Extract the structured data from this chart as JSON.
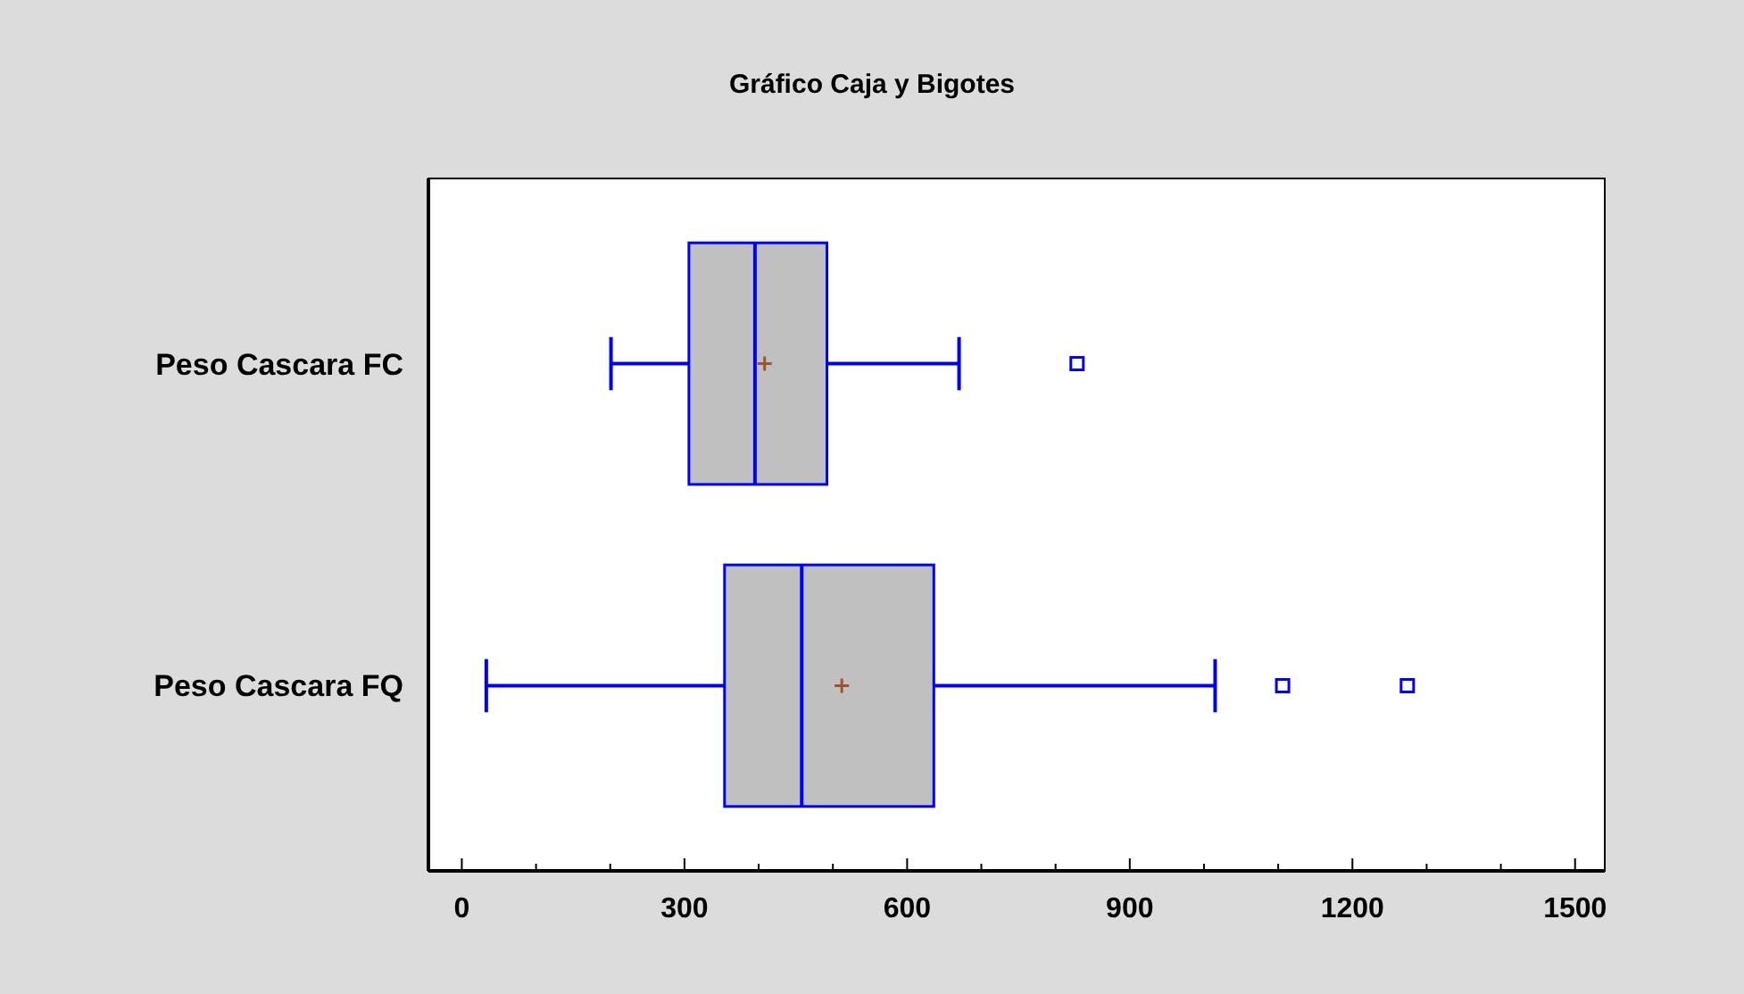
{
  "chart_data": {
    "type": "box",
    "title": "Gráfico Caja y Bigotes",
    "orientation": "horizontal",
    "categories": [
      "Peso Cascara FC",
      "Peso Cascara FQ"
    ],
    "boxes": [
      {
        "low": 201,
        "q1": 306,
        "median": 395,
        "q3": 492,
        "high": 670,
        "mean": 408,
        "outliers": [
          829
        ]
      },
      {
        "low": 33,
        "q1": 354,
        "median": 458,
        "q3": 636,
        "high": 1015,
        "mean": 512,
        "outliers": [
          1106,
          1274
        ]
      }
    ],
    "color": "#0000ff",
    "xlim": [
      -45,
      1540
    ],
    "xticks": [
      0,
      {
        "value": 100,
        "label": null
      },
      {
        "value": 200,
        "label": null
      },
      300,
      {
        "value": 400,
        "label": null
      },
      {
        "value": 500,
        "label": null
      },
      600,
      {
        "value": 700,
        "label": null
      },
      {
        "value": 800,
        "label": null
      },
      900,
      {
        "value": 1000,
        "label": null
      },
      {
        "value": 1100,
        "label": null
      },
      1200,
      {
        "value": 1300,
        "label": null
      },
      {
        "value": 1400,
        "label": null
      },
      1500
    ],
    "grid": false
  }
}
